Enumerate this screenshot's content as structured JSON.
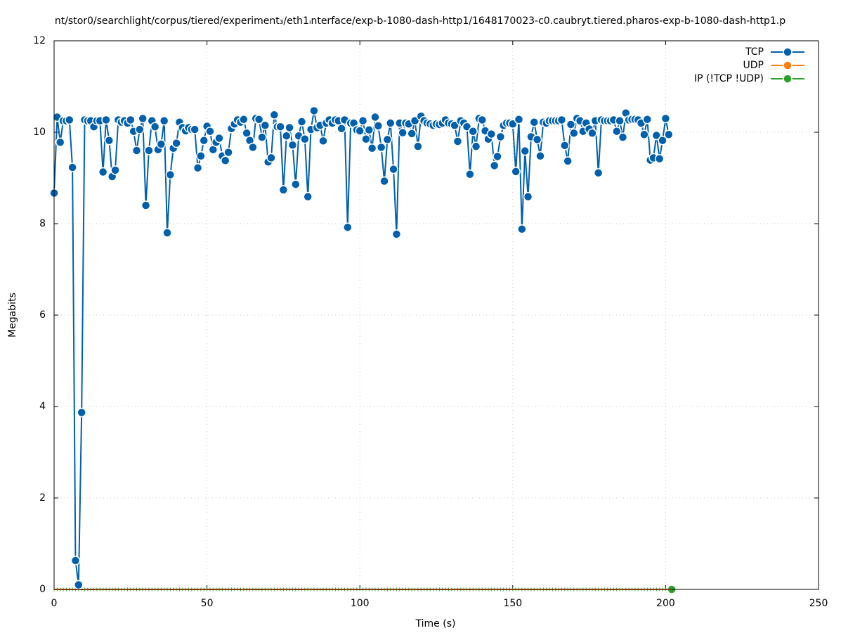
{
  "chart_data": {
    "type": "line",
    "title": "nt/stor0/searchlight/corpus/tiered/experiment₃/eth1ᵢnterface/exp-b-1080-dash-http1/1648170023-c0.caubryt.tiered.pharos-exp-b-1080-dash-http1.p",
    "x_label": "Time (s)",
    "y_label": "Megabits",
    "xlim": [
      0,
      250
    ],
    "xticks": [
      0,
      50,
      100,
      150,
      200,
      250
    ],
    "ylim": [
      0,
      12
    ],
    "yticks": [
      0,
      2,
      4,
      6,
      8,
      10,
      12
    ],
    "grid": true,
    "legend": "top-right",
    "x": [
      0,
      1,
      2,
      3,
      4,
      5,
      6,
      7,
      8,
      9,
      10,
      11,
      12,
      13,
      14,
      15,
      16,
      17,
      18,
      19,
      20,
      21,
      22,
      23,
      24,
      25,
      26,
      27,
      28,
      29,
      30,
      31,
      32,
      33,
      34,
      35,
      36,
      37,
      38,
      39,
      40,
      41,
      42,
      43,
      44,
      45,
      46,
      47,
      48,
      49,
      50,
      51,
      52,
      53,
      54,
      55,
      56,
      57,
      58,
      59,
      60,
      61,
      62,
      63,
      64,
      65,
      66,
      67,
      68,
      69,
      70,
      71,
      72,
      73,
      74,
      75,
      76,
      77,
      78,
      79,
      80,
      81,
      82,
      83,
      84,
      85,
      86,
      87,
      88,
      89,
      90,
      91,
      92,
      93,
      94,
      95,
      96,
      97,
      98,
      99,
      100,
      101,
      102,
      103,
      104,
      105,
      106,
      107,
      108,
      109,
      110,
      111,
      112,
      113,
      114,
      115,
      116,
      117,
      118,
      119,
      120,
      121,
      122,
      123,
      124,
      125,
      126,
      127,
      128,
      129,
      130,
      131,
      132,
      133,
      134,
      135,
      136,
      137,
      138,
      139,
      140,
      141,
      142,
      143,
      144,
      145,
      146,
      147,
      148,
      149,
      150,
      151,
      152,
      153,
      154,
      155,
      156,
      157,
      158,
      159,
      160,
      161,
      162,
      163,
      164,
      165,
      166,
      167,
      168,
      169,
      170,
      171,
      172,
      173,
      174,
      175,
      176,
      177,
      178,
      179,
      180,
      181,
      182,
      183,
      184,
      185,
      186,
      187,
      188,
      189,
      190,
      191,
      192,
      193,
      194,
      195,
      196,
      197,
      198,
      199,
      200,
      201,
      202
    ],
    "series": [
      {
        "name": "TCP",
        "color": "#0060ad",
        "values": [
          8.67,
          10.33,
          9.78,
          10.25,
          10.25,
          10.27,
          9.23,
          0.63,
          0.1,
          3.87,
          10.27,
          10.25,
          10.25,
          10.12,
          10.25,
          10.25,
          9.13,
          10.27,
          9.82,
          9.03,
          9.17,
          10.27,
          10.22,
          10.25,
          10.2,
          10.27,
          10.02,
          9.6,
          10.06,
          10.3,
          8.4,
          9.6,
          10.25,
          10.12,
          9.62,
          9.74,
          10.25,
          7.8,
          9.07,
          9.65,
          9.76,
          10.22,
          10.1,
          10.03,
          10.1,
          10.06,
          10.06,
          9.22,
          9.48,
          9.82,
          10.13,
          10.02,
          9.62,
          9.78,
          9.87,
          9.48,
          9.38,
          9.56,
          10.08,
          10.18,
          10.27,
          10.22,
          10.28,
          9.98,
          9.82,
          9.67,
          10.3,
          10.28,
          9.89,
          10.15,
          9.35,
          9.44,
          10.38,
          10.12,
          10.12,
          8.74,
          9.92,
          10.1,
          9.72,
          8.86,
          9.92,
          10.23,
          9.85,
          8.59,
          10.06,
          10.47,
          10.1,
          10.15,
          9.81,
          10.2,
          10.27,
          10.2,
          10.27,
          10.25,
          10.08,
          10.27,
          7.92,
          10.2,
          10.2,
          10.05,
          10.03,
          10.25,
          9.85,
          10.05,
          9.65,
          10.33,
          10.14,
          9.67,
          8.93,
          9.84,
          10.2,
          9.19,
          7.77,
          10.2,
          9.99,
          10.2,
          10.18,
          9.97,
          10.25,
          9.69,
          10.35,
          10.25,
          10.2,
          10.18,
          10.15,
          10.18,
          10.17,
          10.2,
          10.27,
          10.2,
          10.18,
          10.15,
          9.8,
          10.25,
          10.2,
          10.12,
          9.08,
          10.02,
          9.69,
          10.3,
          10.27,
          10.03,
          9.85,
          9.96,
          9.27,
          9.47,
          9.9,
          10.15,
          10.2,
          10.2,
          10.18,
          9.14,
          10.28,
          7.88,
          9.59,
          8.59,
          9.9,
          10.22,
          9.84,
          9.48,
          10.22,
          10.2,
          10.25,
          10.25,
          10.25,
          10.25,
          10.27,
          9.71,
          9.37,
          10.17,
          9.98,
          10.3,
          10.25,
          10.02,
          10.2,
          10.07,
          9.98,
          10.25,
          9.11,
          10.27,
          10.25,
          10.25,
          10.25,
          10.27,
          10.02,
          10.25,
          9.89,
          10.42,
          10.27,
          10.28,
          10.28,
          10.27,
          10.2,
          9.95,
          10.28,
          9.39,
          9.44,
          9.93,
          9.42,
          9.82,
          10.3,
          9.95,
          null
        ]
      },
      {
        "name": "UDP",
        "color": "#ff7f0e",
        "values": [
          0,
          0,
          0,
          0,
          0,
          0,
          0,
          0,
          0,
          0,
          0,
          0,
          0,
          0,
          0,
          0,
          0,
          0,
          0,
          0,
          0,
          0,
          0,
          0,
          0,
          0,
          0,
          0,
          0,
          0,
          0,
          0,
          0,
          0,
          0,
          0,
          0,
          0,
          0,
          0,
          0,
          0,
          0,
          0,
          0,
          0,
          0,
          0,
          0,
          0,
          0,
          0,
          0,
          0,
          0,
          0,
          0,
          0,
          0,
          0,
          0,
          0,
          0,
          0,
          0,
          0,
          0,
          0,
          0,
          0,
          0,
          0,
          0,
          0,
          0,
          0,
          0,
          0,
          0,
          0,
          0,
          0,
          0,
          0,
          0,
          0,
          0,
          0,
          0,
          0,
          0,
          0,
          0,
          0,
          0,
          0,
          0,
          0,
          0,
          0,
          0,
          0,
          0,
          0,
          0,
          0,
          0,
          0,
          0,
          0,
          0,
          0,
          0,
          0,
          0,
          0,
          0,
          0,
          0,
          0,
          0,
          0,
          0,
          0,
          0,
          0,
          0,
          0,
          0,
          0,
          0,
          0,
          0,
          0,
          0,
          0,
          0,
          0,
          0,
          0,
          0,
          0,
          0,
          0,
          0,
          0,
          0,
          0,
          0,
          0,
          0,
          0,
          0,
          0,
          0,
          0,
          0,
          0,
          0,
          0,
          0,
          0,
          0,
          0,
          0,
          0,
          0,
          0,
          0,
          0,
          0,
          0,
          0,
          0,
          0,
          0,
          0,
          0,
          0,
          0,
          0,
          0,
          0,
          0,
          0,
          0,
          0,
          0,
          0,
          0,
          0,
          0,
          0,
          0,
          0,
          0,
          0,
          0,
          0,
          0,
          0,
          0,
          0
        ]
      },
      {
        "name": "IP (!TCP  !UDP)",
        "color": "#2ca02c",
        "values": [
          0,
          0,
          0,
          0,
          0,
          0,
          0,
          0,
          0,
          0,
          0,
          0,
          0,
          0,
          0,
          0,
          0,
          0,
          0,
          0,
          0,
          0,
          0,
          0,
          0,
          0,
          0,
          0,
          0,
          0,
          0,
          0,
          0,
          0,
          0,
          0,
          0,
          0,
          0,
          0,
          0,
          0,
          0,
          0,
          0,
          0,
          0,
          0,
          0,
          0,
          0,
          0,
          0,
          0,
          0,
          0,
          0,
          0,
          0,
          0,
          0,
          0,
          0,
          0,
          0,
          0,
          0,
          0,
          0,
          0,
          0,
          0,
          0,
          0,
          0,
          0,
          0,
          0,
          0,
          0,
          0,
          0,
          0,
          0,
          0,
          0,
          0,
          0,
          0,
          0,
          0,
          0,
          0,
          0,
          0,
          0,
          0,
          0,
          0,
          0,
          0,
          0,
          0,
          0,
          0,
          0,
          0,
          0,
          0,
          0,
          0,
          0,
          0,
          0,
          0,
          0,
          0,
          0,
          0,
          0,
          0,
          0,
          0,
          0,
          0,
          0,
          0,
          0,
          0,
          0,
          0,
          0,
          0,
          0,
          0,
          0,
          0,
          0,
          0,
          0,
          0,
          0,
          0,
          0,
          0,
          0,
          0,
          0,
          0,
          0,
          0,
          0,
          0,
          0,
          0,
          0,
          0,
          0,
          0,
          0,
          0,
          0,
          0,
          0,
          0,
          0,
          0,
          0,
          0,
          0,
          0,
          0,
          0,
          0,
          0,
          0,
          0,
          0,
          0,
          0,
          0,
          0,
          0,
          0,
          0,
          0,
          0,
          0,
          0,
          0,
          0,
          0,
          0,
          0,
          0,
          0,
          0,
          0,
          0,
          0,
          0,
          0,
          0
        ]
      }
    ]
  }
}
